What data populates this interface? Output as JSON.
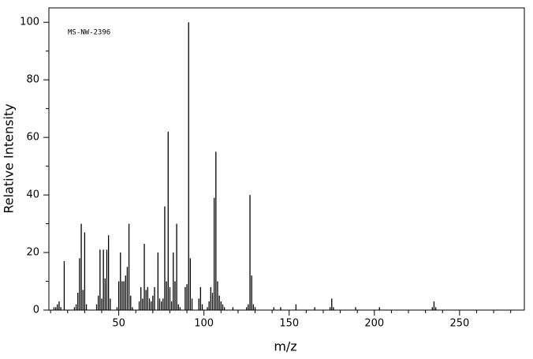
{
  "chart_data": {
    "type": "stem",
    "annotation": "MS-NW-2396",
    "x_label": "m/z",
    "y_label": "Relative Intensity",
    "color": "#000000",
    "xlim": [
      9,
      288
    ],
    "ylim": [
      0,
      105
    ],
    "xticks": [
      50,
      100,
      150,
      200,
      250
    ],
    "yticks": [
      0,
      20,
      40,
      60,
      80,
      100
    ],
    "xminor_ticks": [
      10,
      20,
      30,
      40,
      60,
      70,
      80,
      90,
      110,
      120,
      130,
      140,
      160,
      170,
      180,
      190,
      210,
      220,
      230,
      240,
      260,
      270,
      280
    ],
    "yminor_ticks": [
      10,
      30,
      50,
      70,
      90
    ],
    "x": [
      12,
      13,
      14,
      15,
      16,
      18,
      24,
      25,
      26,
      27,
      28,
      29,
      30,
      31,
      37,
      38,
      39,
      40,
      41,
      42,
      43,
      44,
      45,
      49,
      50,
      51,
      52,
      53,
      54,
      55,
      56,
      57,
      58,
      62,
      63,
      64,
      65,
      66,
      67,
      68,
      69,
      70,
      71,
      73,
      74,
      75,
      76,
      77,
      78,
      79,
      80,
      81,
      82,
      83,
      84,
      85,
      86,
      89,
      90,
      91,
      92,
      93,
      97,
      98,
      99,
      102,
      103,
      104,
      105,
      106,
      107,
      108,
      109,
      110,
      111,
      112,
      117,
      125,
      126,
      127,
      128,
      129,
      130,
      141,
      145,
      154,
      165,
      174,
      175,
      176,
      189,
      203,
      234,
      235,
      236
    ],
    "values": [
      1,
      1,
      2,
      3,
      1,
      17,
      1,
      2,
      6,
      18,
      30,
      7,
      27,
      2,
      2,
      5,
      21,
      4,
      21,
      11,
      21,
      26,
      4,
      1,
      10,
      20,
      10,
      10,
      12,
      15,
      30,
      5,
      1,
      3,
      8,
      4,
      23,
      7,
      8,
      4,
      3,
      5,
      8,
      20,
      4,
      3,
      4,
      36,
      10,
      62,
      8,
      3,
      20,
      10,
      30,
      2,
      1,
      8,
      9,
      100,
      18,
      4,
      4,
      8,
      2,
      1,
      3,
      8,
      6,
      39,
      55,
      10,
      5,
      3,
      2,
      1,
      1,
      1,
      2,
      40,
      12,
      2,
      1,
      1,
      1,
      2,
      1,
      1,
      4,
      1,
      1,
      1,
      1,
      3,
      1
    ]
  }
}
